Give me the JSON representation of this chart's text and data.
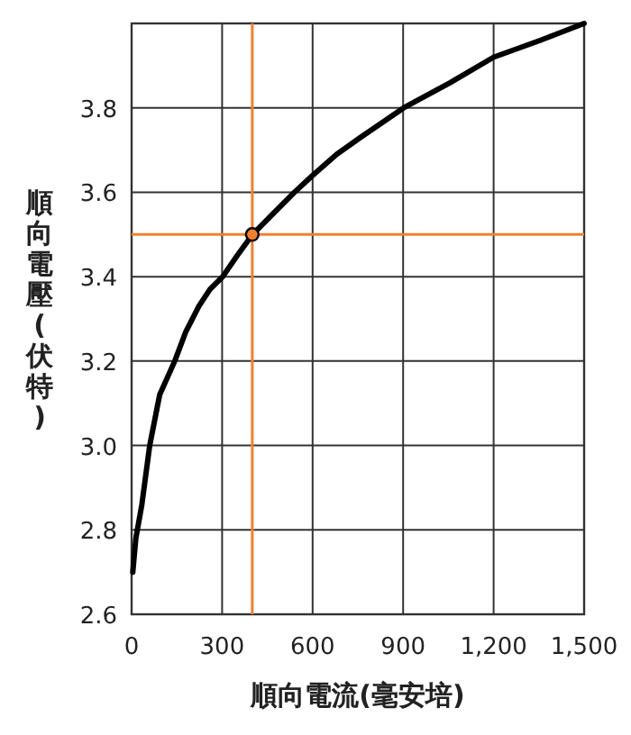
{
  "chart_data": {
    "type": "line",
    "xlabel": "順向電流(毫安培)",
    "ylabel": "順向電壓(伏特)",
    "xlim": [
      0,
      1500
    ],
    "ylim": [
      2.6,
      4.0
    ],
    "xticks": [
      0,
      300,
      600,
      900,
      {
        "value": 1200,
        "label": "1,200"
      },
      {
        "value": 1500,
        "label": "1,500"
      }
    ],
    "yticks": [
      2.6,
      2.8,
      {
        "value": 3.0,
        "label": "3.0"
      },
      3.2,
      3.4,
      3.6,
      3.8,
      {
        "value": 4.0,
        "label": null
      }
    ],
    "grid": true,
    "series": [
      {
        "color": "#000000",
        "line_style": "solid",
        "x": [
          4,
          14,
          34,
          60,
          93,
          143,
          180,
          223,
          260,
          302,
          350,
          401,
          470,
          540,
          600,
          680,
          759,
          902,
          1057,
          1200,
          1355,
          1500
        ],
        "values": [
          2.7,
          2.78,
          2.86,
          3.0,
          3.12,
          3.2,
          3.27,
          3.33,
          3.37,
          3.4,
          3.45,
          3.5,
          3.55,
          3.6,
          3.64,
          3.69,
          3.73,
          3.8,
          3.86,
          3.92,
          3.96,
          4.0
        ]
      },
      {
        "type": "scatter",
        "color": "#f08030",
        "marker": "circle",
        "x": [
          400
        ],
        "values": [
          3.5
        ]
      }
    ],
    "ref_lines": [
      {
        "axis": "x",
        "value": 400,
        "color": "#f08030"
      },
      {
        "axis": "y",
        "value": 3.5,
        "color": "#f08030"
      }
    ]
  }
}
